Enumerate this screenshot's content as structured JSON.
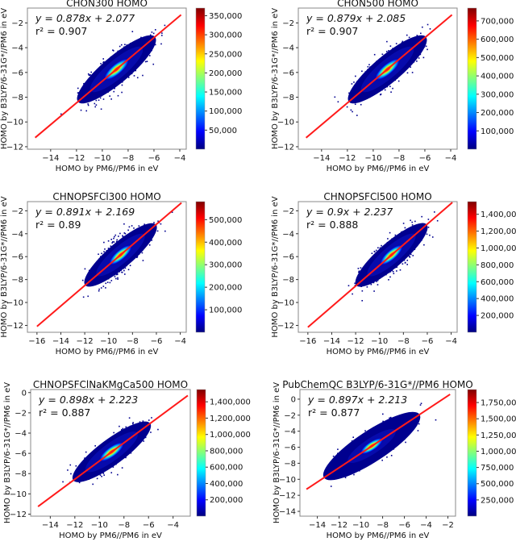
{
  "chart_data": [
    {
      "type": "scatter",
      "title": "CHON300 HOMO",
      "xlabel": "HOMO by PM6//PM6 in eV",
      "ylabel": "HOMO by B3LYP/6-31G*//PM6 in eV",
      "equation": "y = 0.878x + 2.077",
      "r2_label": "r² = 0.907",
      "slope": 0.878,
      "intercept": 2.077,
      "r2": 0.907,
      "xlim": [
        -15.8,
        -3.5
      ],
      "ylim": [
        -12.2,
        -0.8
      ],
      "xticks": [
        -14,
        -12,
        -10,
        -8,
        -6,
        -4
      ],
      "yticks": [
        -12,
        -10,
        -8,
        -6,
        -4,
        -2
      ],
      "fit_x_range": [
        -15.2,
        -3.9
      ],
      "colorbar": {
        "vmax": 370000,
        "ticks": [
          50000,
          100000,
          150000,
          200000,
          250000,
          300000,
          350000
        ],
        "tick_labels": [
          "50,000",
          "100,000",
          "150,000",
          "200,000",
          "250,000",
          "300,000",
          "350,000"
        ]
      },
      "density_center": [
        -8.9,
        -5.75
      ]
    },
    {
      "type": "scatter",
      "title": "CHON500 HOMO",
      "xlabel": "HOMO by PM6//PM6 in eV",
      "ylabel": "HOMO by B3LYP/6-31G*//PM6 in eV",
      "equation": "y = 0.879x + 2.085",
      "r2_label": "r² = 0.907",
      "slope": 0.879,
      "intercept": 2.085,
      "r2": 0.907,
      "xlim": [
        -15.8,
        -3.5
      ],
      "ylim": [
        -12.2,
        -0.8
      ],
      "xticks": [
        -14,
        -12,
        -10,
        -8,
        -6,
        -4
      ],
      "yticks": [
        -12,
        -10,
        -8,
        -6,
        -4,
        -2
      ],
      "fit_x_range": [
        -15.2,
        -3.9
      ],
      "colorbar": {
        "vmax": 770000,
        "ticks": [
          100000,
          200000,
          300000,
          400000,
          500000,
          600000,
          700000
        ],
        "tick_labels": [
          "100,000",
          "200,000",
          "300,000",
          "400,000",
          "500,000",
          "600,000",
          "700,000"
        ]
      },
      "density_center": [
        -8.9,
        -5.75
      ]
    },
    {
      "type": "scatter",
      "title": "CHNOPSFCl300 HOMO",
      "xlabel": "HOMO by PM6//PM6 in eV",
      "ylabel": "HOMO by B3LYP/6-31G*//PM6 in eV",
      "equation": "y = 0.891x + 2.169",
      "r2_label": "r² = 0.89",
      "slope": 0.891,
      "intercept": 2.169,
      "r2": 0.89,
      "xlim": [
        -16.8,
        -3.5
      ],
      "ylim": [
        -12.6,
        -1.2
      ],
      "xticks": [
        -16,
        -14,
        -12,
        -10,
        -8,
        -6,
        -4
      ],
      "yticks": [
        -12,
        -10,
        -8,
        -6,
        -4,
        -2
      ],
      "fit_x_range": [
        -16.0,
        -3.9
      ],
      "colorbar": {
        "vmax": 580000,
        "ticks": [
          100000,
          200000,
          300000,
          400000,
          500000
        ],
        "tick_labels": [
          "100,000",
          "200,000",
          "300,000",
          "400,000",
          "500,000"
        ]
      },
      "density_center": [
        -9.0,
        -5.85
      ]
    },
    {
      "type": "scatter",
      "title": "CHNOPSFCl500 HOMO",
      "xlabel": "HOMO by PM6//PM6 in eV",
      "ylabel": "HOMO by B3LYP/6-31G*//PM6 in eV",
      "equation": "y = 0.9x + 2.237",
      "r2_label": "r² = 0.888",
      "slope": 0.9,
      "intercept": 2.237,
      "r2": 0.888,
      "xlim": [
        -16.8,
        -3.5
      ],
      "ylim": [
        -12.6,
        -1.2
      ],
      "xticks": [
        -16,
        -14,
        -12,
        -10,
        -8,
        -6,
        -4
      ],
      "yticks": [
        -12,
        -10,
        -8,
        -6,
        -4,
        -2
      ],
      "fit_x_range": [
        -16.0,
        -3.9
      ],
      "colorbar": {
        "vmax": 1550000,
        "ticks": [
          200000,
          400000,
          600000,
          800000,
          1000000,
          1200000,
          1400000
        ],
        "tick_labels": [
          "200,000",
          "400,000",
          "600,000",
          "800,000",
          "1,000,000",
          "1,200,000",
          "1,400,000"
        ]
      },
      "density_center": [
        -9.0,
        -5.85
      ]
    },
    {
      "type": "scatter",
      "title": "CHNOPSFClNaKMgCa500 HOMO",
      "xlabel": "HOMO by PM6//PM6 in eV",
      "ylabel": "HOMO by B3LYP/6-31G*//PM6 in eV",
      "equation": "y = 0.898x + 2.223",
      "r2_label": "r² = 0.887",
      "slope": 0.898,
      "intercept": 2.223,
      "r2": 0.887,
      "xlim": [
        -15.6,
        -2.6
      ],
      "ylim": [
        -12.2,
        0.3
      ],
      "xticks": [
        -14,
        -12,
        -10,
        -8,
        -6,
        -4
      ],
      "yticks": [
        -12,
        -10,
        -8,
        -6,
        -4,
        -2,
        0
      ],
      "fit_x_range": [
        -15.0,
        -2.8
      ],
      "colorbar": {
        "vmax": 1550000,
        "ticks": [
          200000,
          400000,
          600000,
          800000,
          1000000,
          1200000,
          1400000
        ],
        "tick_labels": [
          "200,000",
          "400,000",
          "600,000",
          "800,000",
          "1,000,000",
          "1,200,000",
          "1,400,000"
        ]
      },
      "density_center": [
        -9.0,
        -5.85
      ]
    },
    {
      "type": "scatter",
      "title": "PubChemQC B3LYP/6-31G*//PM6 HOMO",
      "xlabel": "HOMO by PM6//PM6 in eV",
      "ylabel": "HOMO by B3LYP/6-31G*//PM6 in eV",
      "equation": "y = 0.897x + 2.213",
      "r2_label": "r² = 0.877",
      "slope": 0.897,
      "intercept": 2.213,
      "r2": 0.877,
      "xlim": [
        -15.6,
        -1.3
      ],
      "ylim": [
        -14.6,
        1.2
      ],
      "xticks": [
        -14,
        -12,
        -10,
        -8,
        -6,
        -4,
        -2
      ],
      "yticks": [
        -14,
        -12,
        -10,
        -8,
        -6,
        -4,
        -2,
        0
      ],
      "fit_x_range": [
        -15.0,
        -1.8
      ],
      "colorbar": {
        "vmax": 1950000,
        "ticks": [
          250000,
          500000,
          750000,
          1000000,
          1250000,
          1500000,
          1750000
        ],
        "tick_labels": [
          "250,000",
          "500,000",
          "750,000",
          "1,000,000",
          "1,250,000",
          "1,500,000",
          "1,750,000"
        ]
      },
      "density_center": [
        -9.0,
        -5.85
      ]
    }
  ],
  "colors": {
    "fit_line": "#ff1a1a",
    "low": "#00007f",
    "axes": "#888888"
  }
}
